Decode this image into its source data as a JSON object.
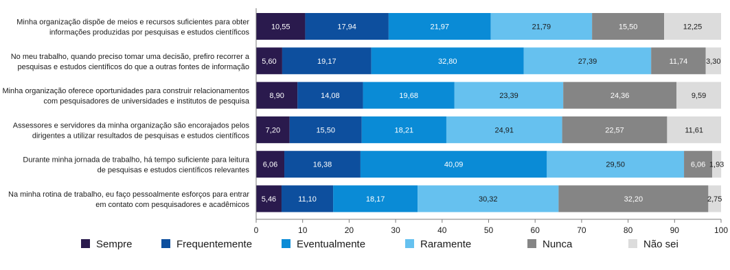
{
  "chart_data": {
    "type": "bar",
    "orientation": "horizontal",
    "stacked": true,
    "categories": [
      [
        "Minha organização dispõe de meios e recursos suficientes para obter",
        "informações produzidas por pesquisas e estudos científicos"
      ],
      [
        "No meu trabalho, quando preciso tomar uma decisão, prefiro recorrer a",
        "pesquisas e estudos científicos do que a outras fontes de informação"
      ],
      [
        "Minha organização oferece oportunidades para construir relacionamentos",
        "com pesquisadores de universidades e institutos de pesquisa"
      ],
      [
        "Assessores e servidores da minha organização são encorajados pelos",
        "dirigentes a utilizar resultados de pesquisas e estudos científicos"
      ],
      [
        "Durante minha jornada de trabalho, há tempo suficiente para leitura",
        "de pesquisas e estudos científicos relevantes"
      ],
      [
        "Na minha rotina de trabalho, eu faço pessoalmente esforços para entrar",
        "em contato com pesquisadores e acadêmicos"
      ]
    ],
    "series": [
      {
        "name": "Sempre",
        "color": "#2a1a4d",
        "text_color": "#ffffff",
        "values": [
          10.55,
          5.6,
          8.9,
          7.2,
          6.06,
          5.46
        ],
        "labels": [
          "10,55",
          "5,60",
          "8,90",
          "7,20",
          "6,06",
          "5,46"
        ]
      },
      {
        "name": "Frequentemente",
        "color": "#0d4f9e",
        "text_color": "#ffffff",
        "values": [
          17.94,
          19.17,
          14.08,
          15.5,
          16.38,
          11.1
        ],
        "labels": [
          "17,94",
          "19,17",
          "14,08",
          "15,50",
          "16,38",
          "11,10"
        ]
      },
      {
        "name": "Eventualmente",
        "color": "#0a8bd6",
        "text_color": "#ffffff",
        "values": [
          21.97,
          32.8,
          19.68,
          18.21,
          40.09,
          18.17
        ],
        "labels": [
          "21,97",
          "32,80",
          "19,68",
          "18,21",
          "40,09",
          "18,17"
        ]
      },
      {
        "name": "Raramente",
        "color": "#66c1ef",
        "text_color": "#1a1a1a",
        "values": [
          21.79,
          27.39,
          23.39,
          24.91,
          29.5,
          30.32
        ],
        "labels": [
          "21,79",
          "27,39",
          "23,39",
          "24,91",
          "29,50",
          "30,32"
        ]
      },
      {
        "name": "Nunca",
        "color": "#858585",
        "text_color": "#ffffff",
        "values": [
          15.5,
          11.74,
          24.36,
          22.57,
          6.06,
          32.2
        ],
        "labels": [
          "15,50",
          "11,74",
          "24,36",
          "22,57",
          "6,06",
          "32,20"
        ]
      },
      {
        "name": "Não sei",
        "color": "#dcdcdc",
        "text_color": "#1a1a1a",
        "values": [
          12.25,
          3.3,
          9.59,
          11.61,
          1.93,
          2.75
        ],
        "labels": [
          "12,25",
          "3,30",
          "9,59",
          "11,61",
          "1,93",
          "2,75"
        ]
      }
    ],
    "xlim": [
      0,
      100
    ],
    "xticks": [
      0,
      10,
      20,
      30,
      40,
      50,
      60,
      70,
      80,
      90,
      100
    ],
    "grid": false,
    "legend_position": "bottom"
  }
}
